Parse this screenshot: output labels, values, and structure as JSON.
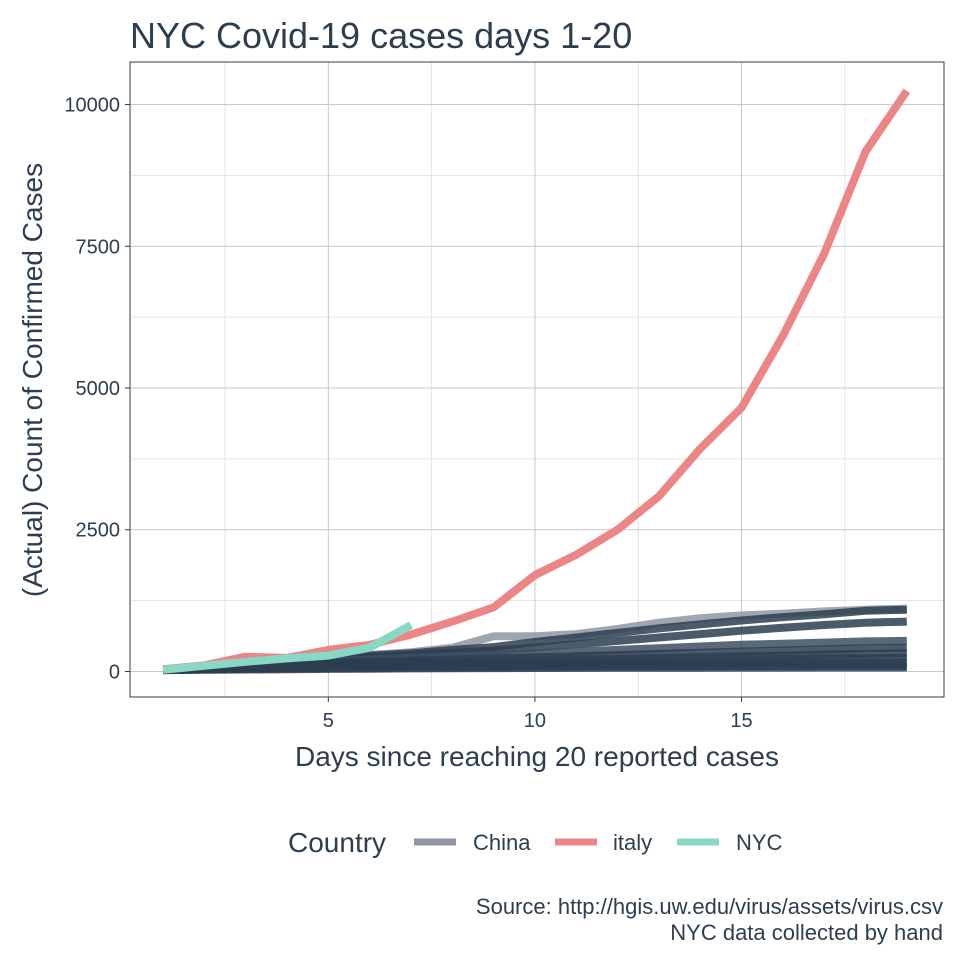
{
  "chart_data": {
    "type": "line",
    "title": "NYC Covid-19 cases days 1-20",
    "xlabel": "Days since reaching 20 reported cases",
    "ylabel": "(Actual) Count of Confirmed Cases",
    "xlim": [
      0.2,
      19.9
    ],
    "ylim": [
      -450,
      10750
    ],
    "x_ticks": [
      5,
      10,
      15
    ],
    "y_ticks": [
      0,
      2500,
      5000,
      7500,
      10000
    ],
    "grid": true,
    "legend": {
      "title": "Country",
      "position": "bottom",
      "entries": [
        {
          "label": "China",
          "color": "#8f96a3"
        },
        {
          "label": "italy",
          "color": "#ec8585"
        },
        {
          "label": "NYC",
          "color": "#88d8c6"
        }
      ]
    },
    "caption": [
      "Source: http://hgis.uw.edu/virus/assets/virus.csv",
      "NYC data collected by hand"
    ],
    "series": [
      {
        "name": "italy",
        "color": "#ec8585",
        "x": [
          1,
          2,
          3,
          4,
          5,
          6,
          7,
          8,
          9,
          10,
          11,
          12,
          13,
          14,
          15,
          16,
          17,
          18,
          19
        ],
        "values": [
          40,
          110,
          260,
          240,
          380,
          470,
          650,
          880,
          1130,
          1700,
          2060,
          2500,
          3090,
          3930,
          4650,
          5920,
          7370,
          9170,
          10240
        ]
      },
      {
        "name": "NYC",
        "color": "#88d8c6",
        "x": [
          1,
          2,
          3,
          4,
          5,
          6,
          7
        ],
        "values": [
          30,
          100,
          170,
          230,
          280,
          420,
          820
        ]
      },
      {
        "name": "China",
        "color": "#8f96a3",
        "x": [
          1,
          2,
          3,
          4,
          5,
          6,
          7,
          8,
          9,
          10,
          11,
          12,
          13,
          14,
          15,
          16,
          17,
          18,
          19
        ],
        "values": [
          40,
          90,
          170,
          200,
          260,
          290,
          340,
          420,
          620,
          620,
          660,
          750,
          860,
          940,
          990,
          1020,
          1060,
          1090,
          1110
        ]
      },
      {
        "name": "China",
        "color": "#2c3e50",
        "x": [
          1,
          2,
          3,
          4,
          5,
          6,
          7,
          8,
          9,
          10,
          11,
          12,
          13,
          14,
          15,
          16,
          17,
          18,
          19
        ],
        "values": [
          30,
          80,
          140,
          190,
          240,
          280,
          320,
          380,
          430,
          520,
          600,
          680,
          760,
          830,
          900,
          960,
          1010,
          1070,
          1090
        ]
      },
      {
        "name": "China",
        "color": "#2c3e50",
        "x": [
          1,
          2,
          3,
          4,
          5,
          6,
          7,
          8,
          9,
          10,
          11,
          12,
          13,
          14,
          15,
          16,
          17,
          18,
          19
        ],
        "values": [
          30,
          70,
          120,
          170,
          210,
          250,
          290,
          330,
          370,
          420,
          480,
          540,
          600,
          660,
          720,
          770,
          820,
          860,
          880
        ]
      },
      {
        "name": "China",
        "color": "#3d4f61",
        "x": [
          1,
          2,
          3,
          4,
          5,
          6,
          7,
          8,
          9,
          10,
          11,
          12,
          13,
          14,
          15,
          16,
          17,
          18,
          19
        ],
        "values": [
          30,
          60,
          100,
          140,
          180,
          210,
          240,
          270,
          290,
          320,
          350,
          380,
          410,
          440,
          470,
          490,
          510,
          530,
          540
        ]
      },
      {
        "name": "China",
        "color": "#2c3e50",
        "x": [
          1,
          2,
          3,
          4,
          5,
          6,
          7,
          8,
          9,
          10,
          11,
          12,
          13,
          14,
          15,
          16,
          17,
          18,
          19
        ],
        "values": [
          30,
          55,
          90,
          120,
          150,
          170,
          190,
          210,
          230,
          250,
          270,
          290,
          310,
          330,
          350,
          370,
          390,
          410,
          420
        ]
      },
      {
        "name": "China",
        "color": "#2c3e50",
        "x": [
          1,
          2,
          3,
          4,
          5,
          6,
          7,
          8,
          9,
          10,
          11,
          12,
          13,
          14,
          15,
          16,
          17,
          18,
          19
        ],
        "values": [
          30,
          50,
          80,
          100,
          120,
          140,
          160,
          170,
          180,
          190,
          210,
          220,
          240,
          250,
          270,
          280,
          300,
          310,
          320
        ]
      },
      {
        "name": "China",
        "color": "#2c3e50",
        "x": [
          1,
          2,
          3,
          4,
          5,
          6,
          7,
          8,
          9,
          10,
          11,
          12,
          13,
          14,
          15,
          16,
          17,
          18,
          19
        ],
        "values": [
          25,
          45,
          65,
          85,
          100,
          115,
          130,
          140,
          150,
          160,
          170,
          180,
          190,
          200,
          210,
          220,
          230,
          235,
          240
        ]
      },
      {
        "name": "China",
        "color": "#2c3e50",
        "x": [
          1,
          2,
          3,
          4,
          5,
          6,
          7,
          8,
          9,
          10,
          11,
          12,
          13,
          14,
          15,
          16,
          17,
          18,
          19
        ],
        "values": [
          25,
          40,
          55,
          70,
          80,
          90,
          100,
          110,
          115,
          120,
          125,
          130,
          135,
          140,
          145,
          150,
          155,
          158,
          160
        ]
      },
      {
        "name": "China",
        "color": "#2c3e50",
        "x": [
          1,
          2,
          3,
          4,
          5,
          6,
          7,
          8,
          9,
          10,
          11,
          12,
          13,
          14,
          15,
          16,
          17,
          18,
          19
        ],
        "values": [
          25,
          35,
          45,
          55,
          60,
          65,
          70,
          75,
          80,
          85,
          88,
          90,
          92,
          94,
          96,
          98,
          100,
          100,
          100
        ]
      },
      {
        "name": "China",
        "color": "#2c3e50",
        "x": [
          1,
          2,
          3,
          4,
          5,
          6,
          7,
          8,
          9,
          10,
          11,
          12,
          13,
          14,
          15,
          16,
          17,
          18,
          19
        ],
        "values": [
          25,
          30,
          35,
          40,
          45,
          50,
          55,
          58,
          60,
          62,
          64,
          65,
          66,
          67,
          68,
          69,
          70,
          70,
          70
        ]
      }
    ]
  }
}
